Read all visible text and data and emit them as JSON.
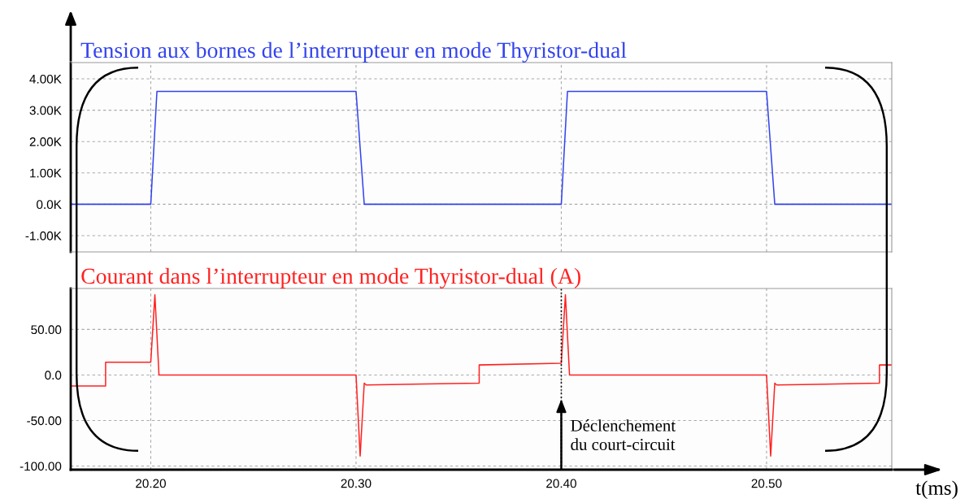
{
  "chart_data": [
    {
      "type": "line",
      "title": "Tension aux bornes de l’interrupteur en mode Thyristor-dual",
      "xlim": [
        20.161,
        20.561
      ],
      "xticks": [
        {
          "value": 20.2,
          "label": null
        },
        {
          "value": 20.3,
          "label": null
        },
        {
          "value": 20.4,
          "label": null
        },
        {
          "value": 20.5,
          "label": null
        }
      ],
      "ylim": [
        -1.52,
        4.52
      ],
      "yticks": [
        {
          "value": 4,
          "label": "4.00K"
        },
        {
          "value": 3,
          "label": "3.00K"
        },
        {
          "value": 2,
          "label": "2.00K"
        },
        {
          "value": 1,
          "label": "1.00K"
        },
        {
          "value": 0,
          "label": "0.0K"
        },
        {
          "value": -1,
          "label": "-1.00K"
        }
      ],
      "tick_labels": "y",
      "grid": true,
      "line_style": "solid",
      "series": [
        {
          "color": "#3344ee",
          "x": [
            20.161,
            20.2,
            20.203,
            20.3,
            20.304,
            20.4,
            20.403,
            20.5,
            20.504,
            20.561
          ],
          "values": [
            0,
            0,
            3.6,
            3.6,
            0,
            0,
            3.6,
            3.6,
            0,
            0
          ]
        }
      ]
    },
    {
      "type": "line",
      "title": "Courant dans l’interrupteur en mode Thyristor-dual (A)",
      "xlabel": "t(ms)",
      "xlim": [
        20.161,
        20.561
      ],
      "xticks": [
        {
          "value": 20.2,
          "label": "20.20"
        },
        {
          "value": 20.3,
          "label": "20.30"
        },
        {
          "value": 20.4,
          "label": "20.40"
        },
        {
          "value": 20.5,
          "label": "20.50"
        }
      ],
      "ylim": [
        -104,
        95
      ],
      "yticks": [
        {
          "value": 50,
          "label": "50.00"
        },
        {
          "value": 0,
          "label": "0.0"
        },
        {
          "value": -50,
          "label": "-50.00"
        },
        {
          "value": -100,
          "label": "-100.00"
        }
      ],
      "grid": true,
      "line_style": "solid",
      "ref_lines": [
        {
          "axis": "x",
          "value": 20.4,
          "color": "#000000",
          "line_style": "dotted"
        }
      ],
      "annotations": [
        {
          "text": "Déclenchement\ndu court-circuit",
          "x": 20.4,
          "y": -24
        }
      ],
      "series": [
        {
          "color": "#ff2222",
          "x": [
            20.161,
            20.178,
            20.178,
            20.2,
            20.202,
            20.204,
            20.3,
            20.302,
            20.304,
            20.305,
            20.36,
            20.36,
            20.4,
            20.402,
            20.404,
            20.5,
            20.502,
            20.504,
            20.505,
            20.555,
            20.555,
            20.561
          ],
          "values": [
            -12,
            -12,
            14,
            14,
            88,
            0,
            0,
            -89,
            -9,
            -11,
            -9,
            11,
            13,
            88,
            0,
            0,
            -89,
            -9,
            -11,
            -9,
            11,
            11
          ]
        }
      ]
    }
  ]
}
